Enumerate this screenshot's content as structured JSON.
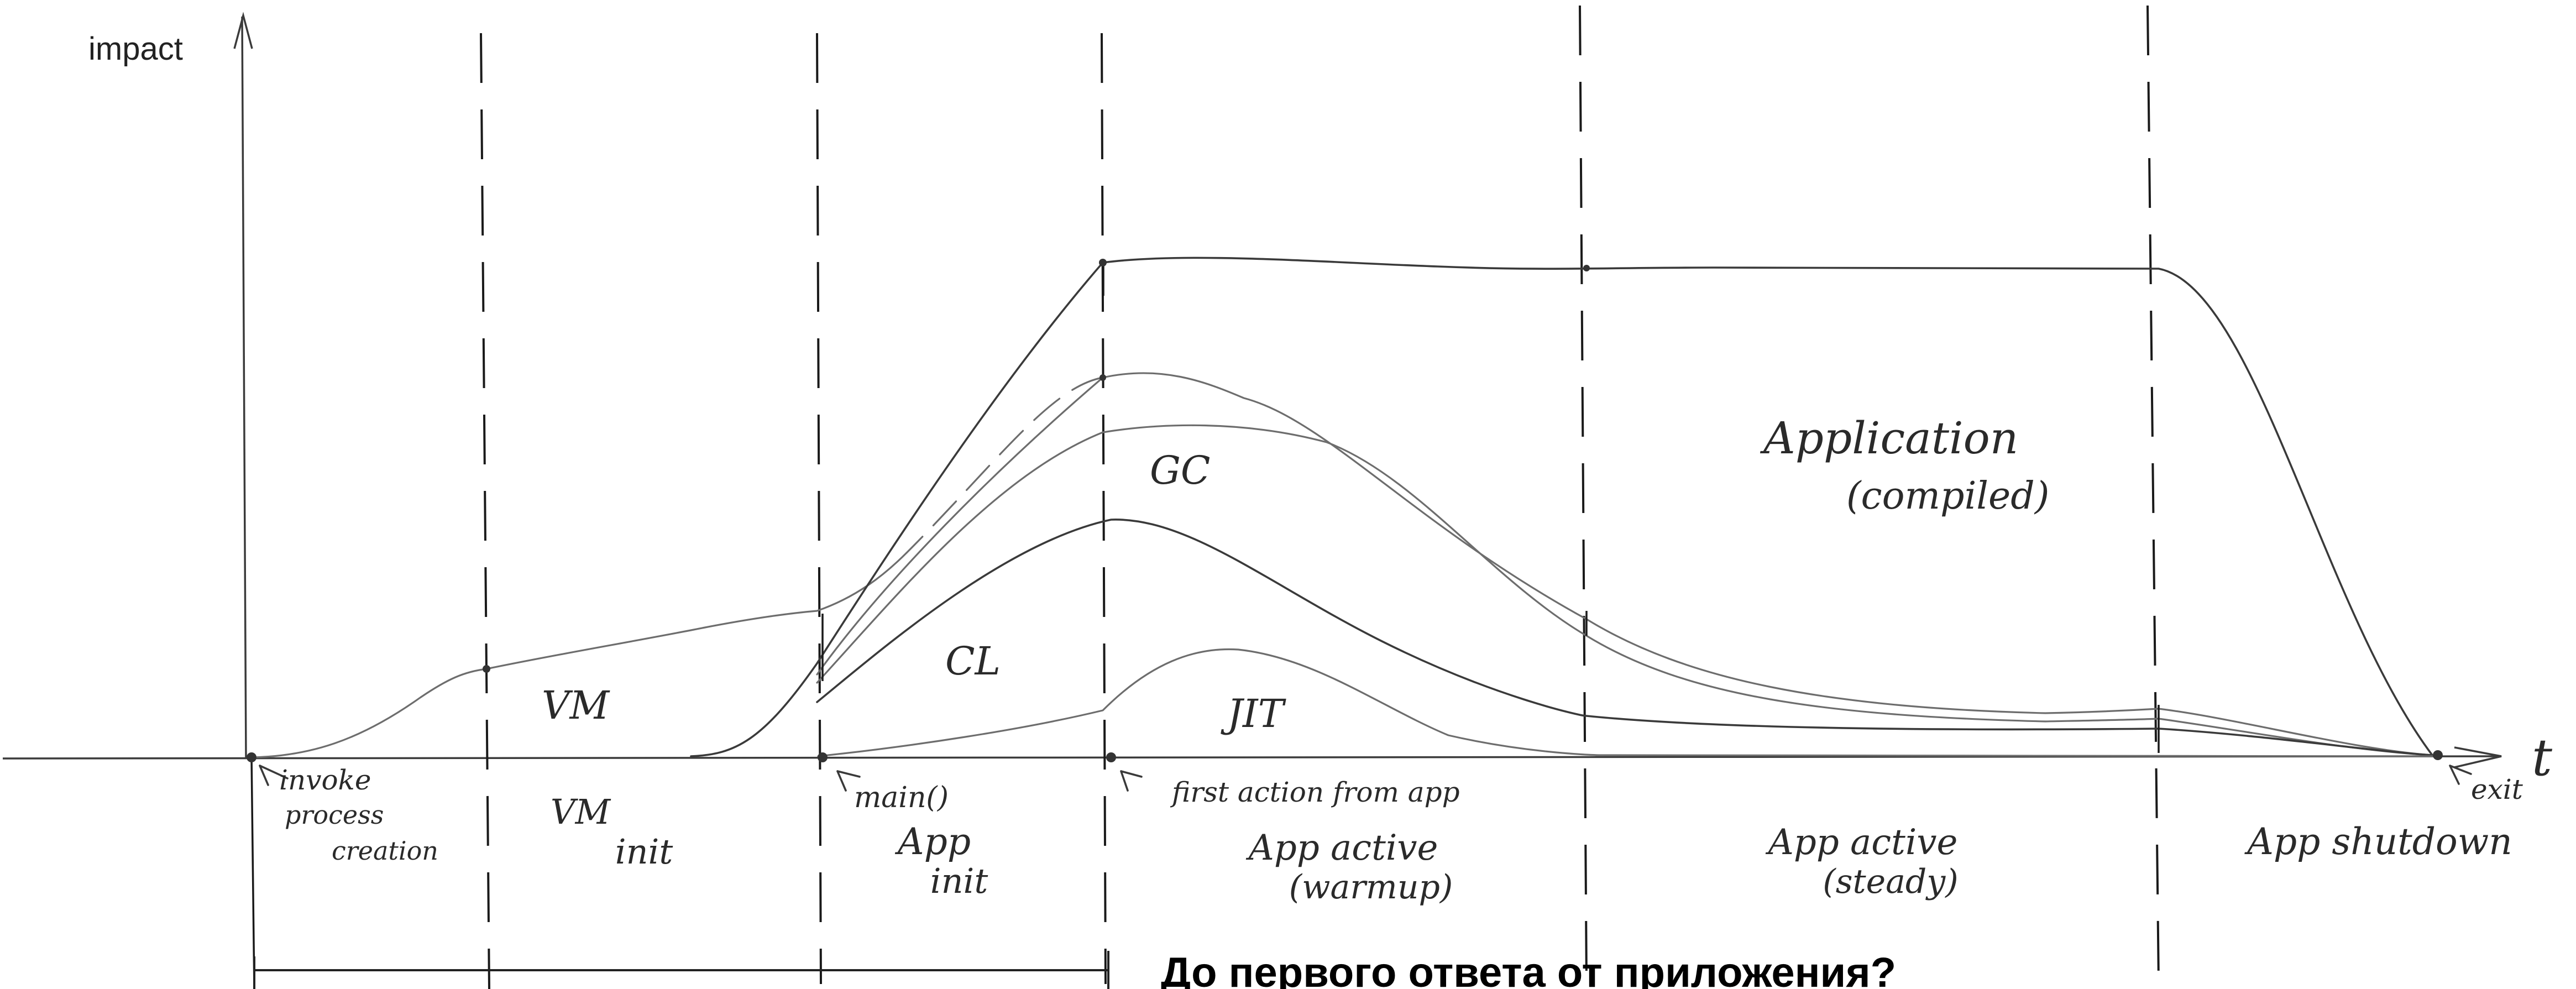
{
  "axis": {
    "y_label": "impact",
    "x_label": "t"
  },
  "regions": {
    "vm": "VM",
    "cl": "CL",
    "gc": "GC",
    "jit": "JIT",
    "application_line1": "Application",
    "application_line2": "(compiled)"
  },
  "events": {
    "process_creation_line1": "invoke",
    "process_creation_line2": "process",
    "process_creation_line3": "creation",
    "main": "main()",
    "first_action": "first action from app",
    "exit": "exit"
  },
  "phases": [
    {
      "line1": "VM",
      "line2": "init"
    },
    {
      "line1": "App",
      "line2": "init"
    },
    {
      "line1": "App active",
      "line2": "(warmup)"
    },
    {
      "line1": "App active",
      "line2": "(steady)"
    },
    {
      "line1": "App shutdown",
      "line2": ""
    }
  ],
  "caption": "До первого ответа от приложения?"
}
